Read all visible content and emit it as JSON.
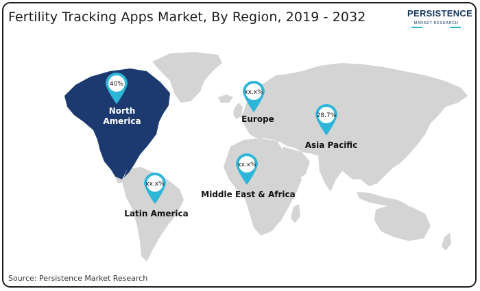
{
  "title": "Fertility Tracking Apps Market, By Region, 2019 - 2032",
  "source": "Source: Persistence Market Research",
  "logo": {
    "main": "PERSISTENCE",
    "sub": "MARKET RESEARCH"
  },
  "colors": {
    "highlight_region": "#1c3a70",
    "land": "#d4d4d4",
    "pin": "#2eb6d9",
    "label_white": "#ffffff",
    "label_dark": "#111111"
  },
  "regions": [
    {
      "id": "north-america",
      "label_lines": [
        "North",
        "America"
      ],
      "value": "40%",
      "highlighted": true
    },
    {
      "id": "europe",
      "label_lines": [
        "Europe"
      ],
      "value": "xx.x%",
      "highlighted": false
    },
    {
      "id": "asia-pacific",
      "label_lines": [
        "Asia Pacific"
      ],
      "value": "28.7%",
      "highlighted": false
    },
    {
      "id": "middle-east-africa",
      "label_lines": [
        "Middle East & Africa"
      ],
      "value": "xx.x%",
      "highlighted": false
    },
    {
      "id": "latin-america",
      "label_lines": [
        "Latin America"
      ],
      "value": "xx.x%",
      "highlighted": false
    }
  ]
}
